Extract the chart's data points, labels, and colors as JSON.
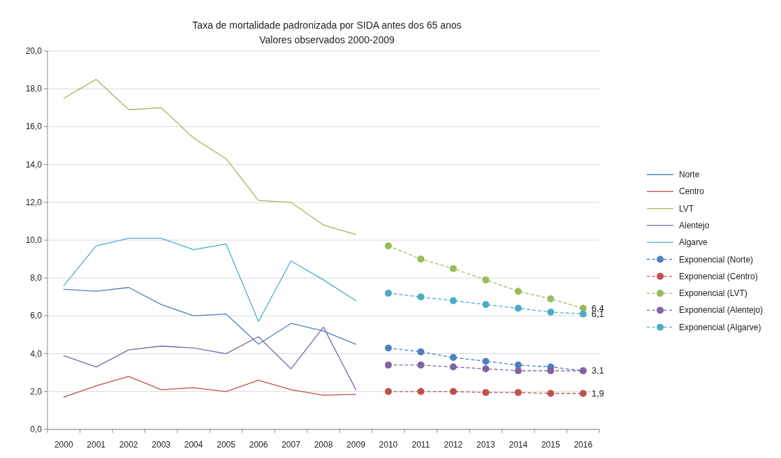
{
  "chart_data": {
    "type": "line",
    "title": "Taxa de mortalidade padronizada por SIDA antes dos 65 anos",
    "subtitle": "Valores observados 2000-2009",
    "categories": [
      "2000",
      "2001",
      "2002",
      "2003",
      "2004",
      "2005",
      "2006",
      "2007",
      "2008",
      "2009",
      "2010",
      "2011",
      "2012",
      "2013",
      "2014",
      "2015",
      "2016"
    ],
    "ylim": [
      0,
      20
    ],
    "yticks": [
      {
        "value": 0,
        "label": "0,0"
      },
      {
        "value": 2,
        "label": "2,0"
      },
      {
        "value": 4,
        "label": "4,0"
      },
      {
        "value": 6,
        "label": "6,0"
      },
      {
        "value": 8,
        "label": "8,0"
      },
      {
        "value": 10,
        "label": "10,0"
      },
      {
        "value": 12,
        "label": "12,0"
      },
      {
        "value": 14,
        "label": "14,0"
      },
      {
        "value": 16,
        "label": "16,0"
      },
      {
        "value": 18,
        "label": "18,0"
      },
      {
        "value": 20,
        "label": "20,0"
      }
    ],
    "grid": "y",
    "legend": "right",
    "series": [
      {
        "name": "Norte",
        "color": "#4f81bd",
        "values": [
          7.4,
          7.3,
          7.5,
          6.6,
          6.0,
          6.1,
          4.5,
          5.6,
          5.2,
          4.5,
          null,
          null,
          null,
          null,
          null,
          null,
          null
        ]
      },
      {
        "name": "Centro",
        "color": "#c0504d",
        "values": [
          1.7,
          2.3,
          2.8,
          2.1,
          2.2,
          2.0,
          2.6,
          2.1,
          1.8,
          1.85,
          null,
          null,
          null,
          null,
          null,
          null,
          null
        ]
      },
      {
        "name": "LVT",
        "color": "#9bbb59",
        "values": [
          17.5,
          18.5,
          16.9,
          17.0,
          15.4,
          14.3,
          12.1,
          12.0,
          10.8,
          10.3,
          null,
          null,
          null,
          null,
          null,
          null,
          null
        ]
      },
      {
        "name": "Alentejo",
        "color": "#8064a2",
        "values": [
          3.9,
          3.3,
          4.2,
          4.4,
          4.3,
          4.0,
          4.9,
          3.2,
          5.4,
          2.1,
          null,
          null,
          null,
          null,
          null,
          null,
          null
        ]
      },
      {
        "name": "Algarve",
        "color": "#4bacc6",
        "values": [
          7.6,
          9.7,
          10.1,
          10.1,
          9.5,
          9.8,
          5.7,
          8.9,
          7.9,
          6.8,
          null,
          null,
          null,
          null,
          null,
          null,
          null
        ]
      },
      {
        "name": "Exponencial (Norte)",
        "color": "#4f81bd",
        "marker": "circle",
        "line_style": "dashed",
        "values": [
          null,
          null,
          null,
          null,
          null,
          null,
          null,
          null,
          null,
          null,
          4.3,
          4.1,
          3.8,
          3.6,
          3.4,
          3.3,
          3.1
        ],
        "value_labels": [
          null,
          null,
          null,
          null,
          null,
          null,
          null,
          null,
          null,
          null,
          null,
          null,
          null,
          null,
          null,
          null,
          "3,1"
        ]
      },
      {
        "name": "Exponencial (Centro)",
        "color": "#c0504d",
        "marker": "circle",
        "line_style": "dashed",
        "values": [
          null,
          null,
          null,
          null,
          null,
          null,
          null,
          null,
          null,
          null,
          2.0,
          2.0,
          2.0,
          1.95,
          1.95,
          1.9,
          1.9
        ],
        "value_labels": [
          null,
          null,
          null,
          null,
          null,
          null,
          null,
          null,
          null,
          null,
          null,
          null,
          null,
          null,
          null,
          null,
          "1,9"
        ]
      },
      {
        "name": "Exponencial (LVT)",
        "color": "#9bbb59",
        "marker": "circle",
        "line_style": "dashed",
        "values": [
          null,
          null,
          null,
          null,
          null,
          null,
          null,
          null,
          null,
          null,
          9.7,
          9.0,
          8.5,
          7.9,
          7.3,
          6.9,
          6.4
        ],
        "value_labels": [
          null,
          null,
          null,
          null,
          null,
          null,
          null,
          null,
          null,
          null,
          null,
          null,
          null,
          null,
          null,
          null,
          "6,4"
        ]
      },
      {
        "name": "Exponencial (Alentejo)",
        "color": "#8064a2",
        "marker": "circle",
        "line_style": "dashed",
        "values": [
          null,
          null,
          null,
          null,
          null,
          null,
          null,
          null,
          null,
          null,
          3.4,
          3.4,
          3.3,
          3.2,
          3.1,
          3.1,
          3.1
        ]
      },
      {
        "name": "Exponencial (Algarve)",
        "color": "#4bacc6",
        "marker": "circle",
        "line_style": "dashed",
        "values": [
          null,
          null,
          null,
          null,
          null,
          null,
          null,
          null,
          null,
          null,
          7.2,
          7.0,
          6.8,
          6.6,
          6.4,
          6.2,
          6.1
        ],
        "value_labels": [
          null,
          null,
          null,
          null,
          null,
          null,
          null,
          null,
          null,
          null,
          null,
          null,
          null,
          null,
          null,
          null,
          "6,1"
        ]
      }
    ]
  }
}
